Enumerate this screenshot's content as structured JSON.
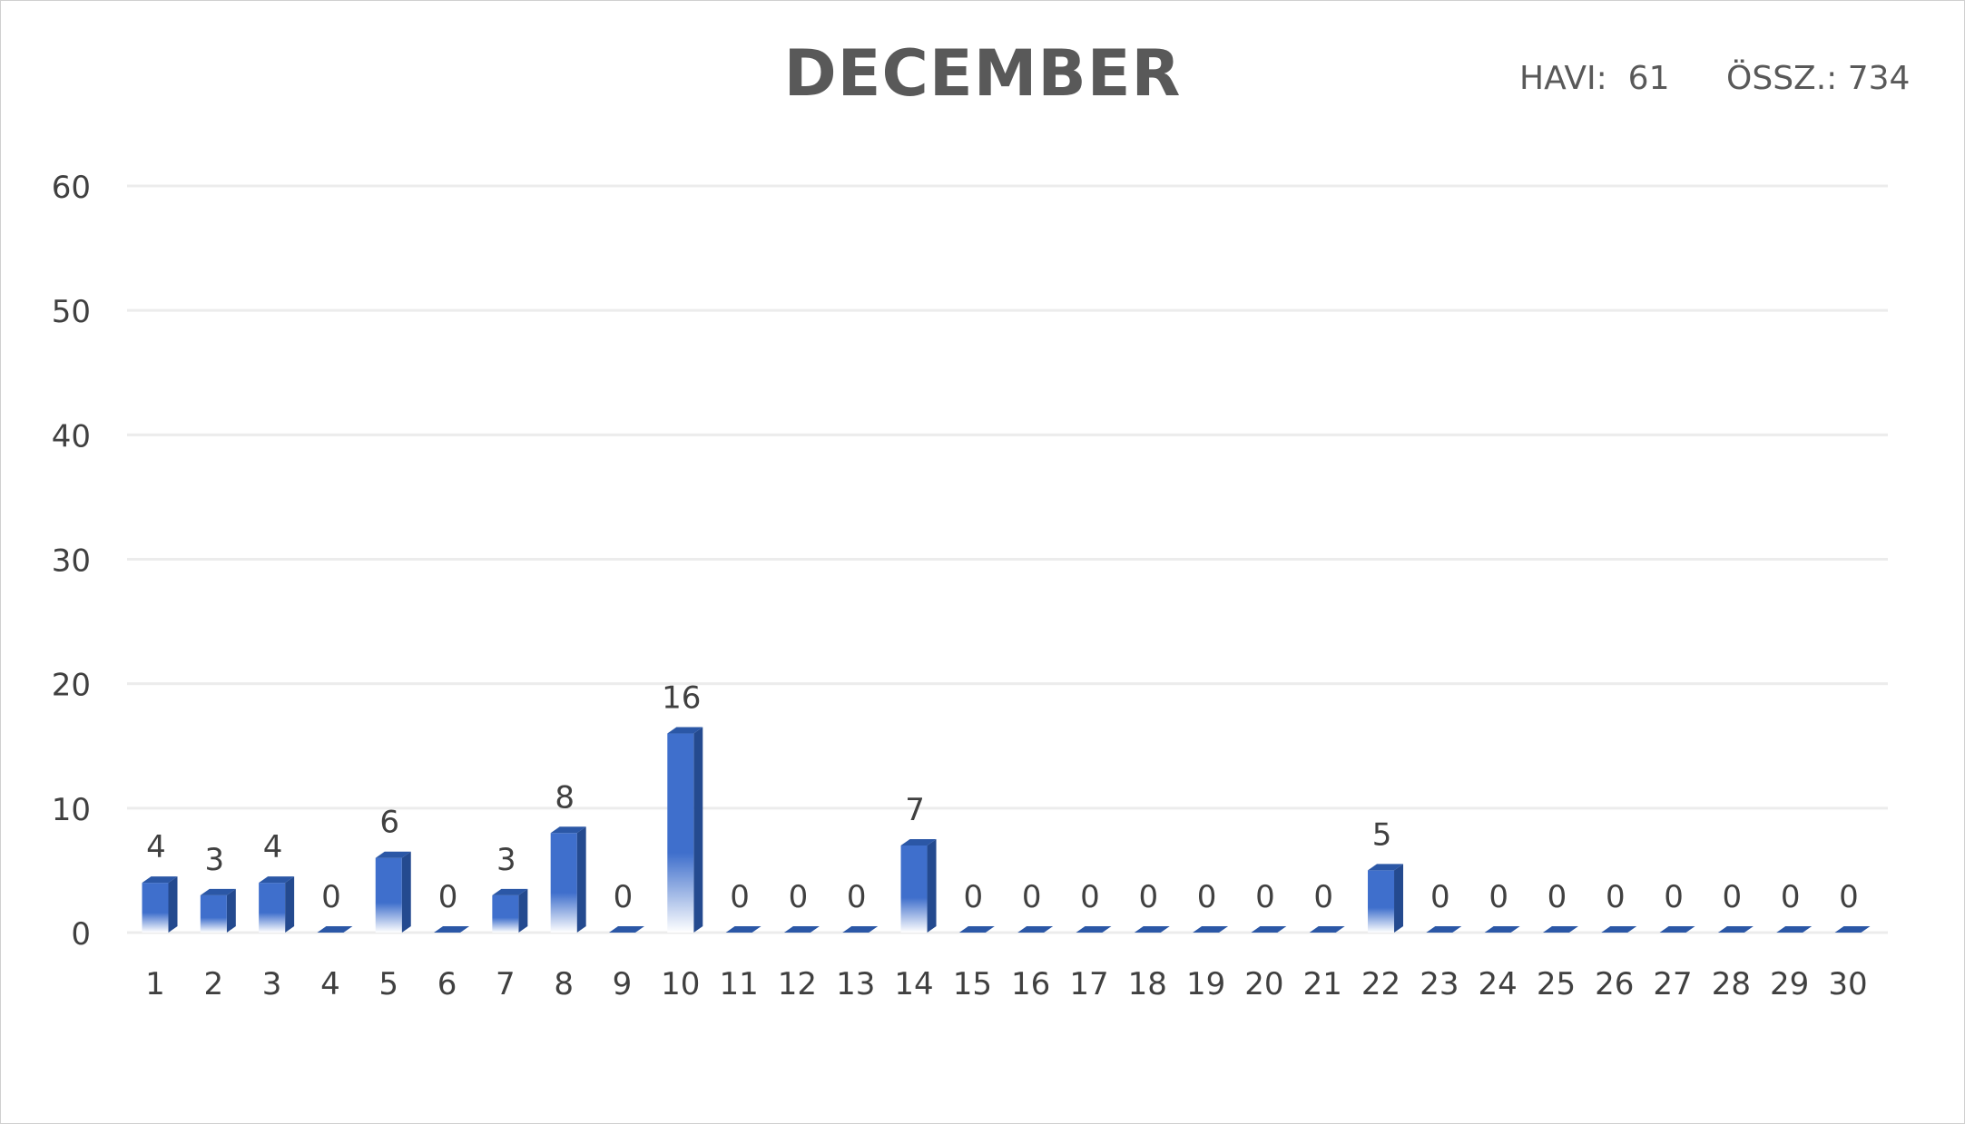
{
  "header": {
    "havi_label": "HAVI:",
    "havi_value": "61",
    "ossz_label": "ÖSSZ.:",
    "ossz_value": "734"
  },
  "chart_data": {
    "type": "bar",
    "title": "DECEMBER",
    "xlabel": "",
    "ylabel": "",
    "ylim": [
      0,
      60
    ],
    "yticks": [
      0,
      10,
      20,
      30,
      40,
      50,
      60
    ],
    "grid": true,
    "legend": "none",
    "categories": [
      "1",
      "2",
      "3",
      "4",
      "5",
      "6",
      "7",
      "8",
      "9",
      "10",
      "11",
      "12",
      "13",
      "14",
      "15",
      "16",
      "17",
      "18",
      "19",
      "20",
      "21",
      "22",
      "23",
      "24",
      "25",
      "26",
      "27",
      "28",
      "29",
      "30"
    ],
    "values": [
      4,
      3,
      4,
      0,
      6,
      0,
      3,
      8,
      0,
      16,
      0,
      0,
      0,
      7,
      0,
      0,
      0,
      0,
      0,
      0,
      0,
      5,
      0,
      0,
      0,
      0,
      0,
      0,
      0,
      0
    ],
    "colors": {
      "bar_top": "#3f6fcc",
      "bar_bottom": "#ffffff",
      "bar_side": "#244a8f",
      "bar_cap": "#2b57a6",
      "grid": "#ececec",
      "text": "#404040"
    }
  }
}
